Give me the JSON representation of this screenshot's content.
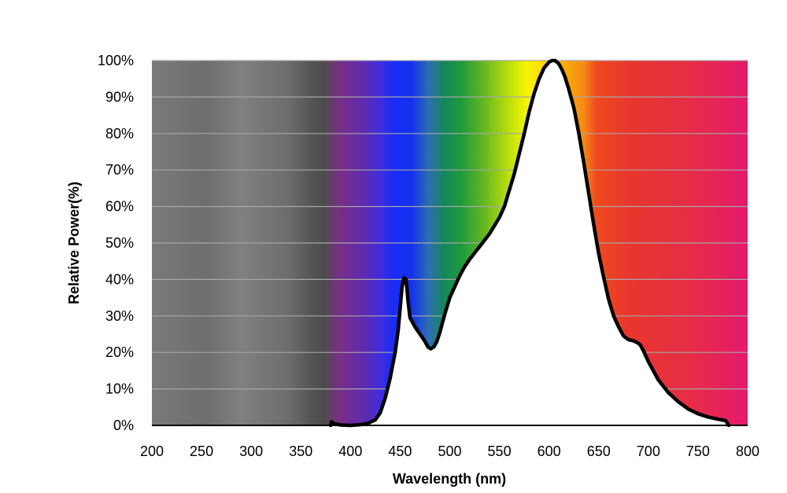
{
  "chart_data": {
    "type": "area",
    "xlabel": "Wavelength (nm)",
    "ylabel": "Relative Power(%)",
    "xlim": [
      200,
      800
    ],
    "ylim": [
      0,
      100
    ],
    "x_ticks": [
      "200",
      "250",
      "300",
      "350",
      "400",
      "450",
      "500",
      "550",
      "600",
      "650",
      "700",
      "750",
      "800"
    ],
    "y_ticks": [
      "0%",
      "10%",
      "20%",
      "30%",
      "40%",
      "50%",
      "60%",
      "70%",
      "80%",
      "90%",
      "100%"
    ],
    "grid": true,
    "legend": "none",
    "background": "visible-spectrum gradient (gray below ~370 nm)",
    "series": [
      {
        "x": [
          380,
          381,
          383,
          390,
          400,
          410,
          418,
          425,
          430,
          435,
          440,
          445,
          448,
          450,
          452,
          454,
          456,
          458,
          460,
          462,
          465,
          470,
          475,
          478,
          481,
          484,
          487,
          490,
          495,
          500,
          505,
          510,
          515,
          520,
          530,
          540,
          550,
          555,
          560,
          565,
          570,
          575,
          580,
          585,
          590,
          595,
          600,
          603,
          606,
          608,
          610,
          613,
          616,
          620,
          625,
          630,
          635,
          640,
          645,
          650,
          655,
          660,
          665,
          670,
          675,
          680,
          685,
          690,
          692,
          695,
          700,
          710,
          720,
          730,
          740,
          750,
          760,
          770,
          778,
          781
        ],
        "y": [
          0,
          1,
          0.5,
          0.1,
          0,
          0.2,
          0.6,
          1.5,
          3.5,
          7.5,
          13,
          20,
          26,
          32,
          38,
          40.5,
          40,
          34,
          29.5,
          28.5,
          27,
          25,
          23,
          21.5,
          21,
          21.5,
          23,
          25.5,
          30.5,
          35,
          38,
          41,
          43.5,
          45.5,
          49,
          52.5,
          57,
          60,
          64.5,
          69,
          74.5,
          80,
          86,
          91,
          95,
          98,
          99.6,
          100,
          100,
          99.6,
          99,
          97.5,
          95.5,
          92,
          87,
          80,
          72,
          63.5,
          55,
          47,
          40.5,
          34.5,
          30,
          27,
          24.5,
          23.5,
          23.2,
          22.5,
          22,
          20.5,
          17.5,
          12.5,
          9,
          6.5,
          4.5,
          3.2,
          2.3,
          1.7,
          1.3,
          0
        ]
      }
    ],
    "colors": {
      "curve": "#000000",
      "fill": "#ffffff",
      "gridline": "#a6a6a6"
    }
  }
}
